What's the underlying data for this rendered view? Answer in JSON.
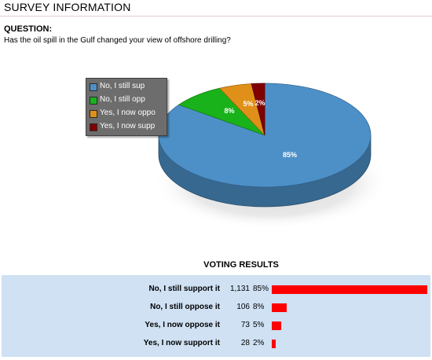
{
  "header": {
    "title": "SURVEY INFORMATION"
  },
  "question": {
    "label": "QUESTION:",
    "text": "Has the oil spill in the Gulf changed your view of offshore drilling?"
  },
  "legend": {
    "items": [
      {
        "label": "No, I still sup",
        "color": "#4d90c8"
      },
      {
        "label": "No, I still opp",
        "color": "#1ab21a"
      },
      {
        "label": "Yes, I now oppo",
        "color": "#e09018"
      },
      {
        "label": "Yes, I now supp",
        "color": "#800000"
      }
    ]
  },
  "chart_data": {
    "type": "pie",
    "categories": [
      "No, I still support it",
      "No, I still oppose it",
      "Yes, I now oppose it",
      "Yes, I now support it"
    ],
    "values": [
      85,
      8,
      5,
      2
    ],
    "labels": [
      "85%",
      "8%",
      "5%",
      "2%"
    ],
    "colors": [
      "#4d90c8",
      "#1ab21a",
      "#e09018",
      "#800000"
    ]
  },
  "results": {
    "title": "VOTING RESULTS",
    "bar_color": "#ff0000",
    "rows": [
      {
        "label": "No, I still support it",
        "count": "1,131",
        "pct": "85%",
        "share": 0.85
      },
      {
        "label": "No, I still oppose it",
        "count": "106",
        "pct": "8%",
        "share": 0.08
      },
      {
        "label": "Yes, I now oppose it",
        "count": "73",
        "pct": "5%",
        "share": 0.05
      },
      {
        "label": "Yes, I now support it",
        "count": "28",
        "pct": "2%",
        "share": 0.02
      }
    ]
  }
}
